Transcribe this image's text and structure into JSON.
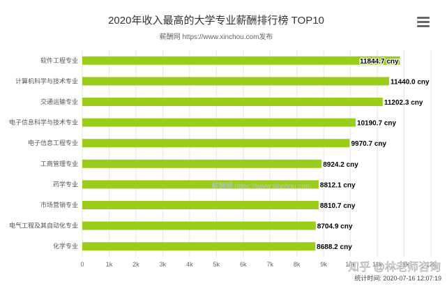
{
  "chart_data": {
    "type": "bar",
    "orientation": "horizontal",
    "title": "2020年收入最高的大学专业薪酬排行榜 TOP10",
    "subtitle": "薪酬网 https://www.xinchou.com发布",
    "categories": [
      "软件工程专业",
      "计算机科学与技术专业",
      "交通运输专业",
      "电子信息科学与技术专业",
      "电子信息工程专业",
      "工商管理专业",
      "药学专业",
      "市场营销专业",
      "电气工程及其自动化专业",
      "化学专业"
    ],
    "values": [
      11844.7,
      11440.0,
      11202.3,
      10190.7,
      9970.7,
      8924.2,
      8812.1,
      8810.7,
      8704.9,
      8688.2
    ],
    "data_labels": [
      "11844.7 cny",
      "11440.0 cny",
      "11202.3 cny",
      "10190.7 cny",
      "9970.7 cny",
      "8924.2 cny",
      "8812.1 cny",
      "8810.7 cny",
      "8704.9 cny",
      "8688.2 cny"
    ],
    "unit": "cny",
    "xlim": [
      0,
      13000
    ],
    "xticks": [
      0,
      1000,
      2000,
      3000,
      4000,
      5000,
      6000,
      7000,
      8000,
      9000,
      10000,
      11000,
      12000,
      13000
    ],
    "xtick_labels": [
      "0",
      "1k",
      "2k",
      "3k",
      "4k",
      "5k",
      "6k",
      "7k",
      "8k",
      "9k",
      "10k",
      "11k",
      "12k",
      "13k"
    ],
    "grid": true,
    "bar_color": "#9acd1a",
    "watermark": "薪酬网 https://www.xinchou.com",
    "footer": "统计时间: 2020-07-16 12:07:19",
    "overlay_watermark": "知乎 @林老师咨询"
  },
  "ui": {
    "menu_icon": "hamburger-menu-icon",
    "menu_label": "Chart menu"
  }
}
